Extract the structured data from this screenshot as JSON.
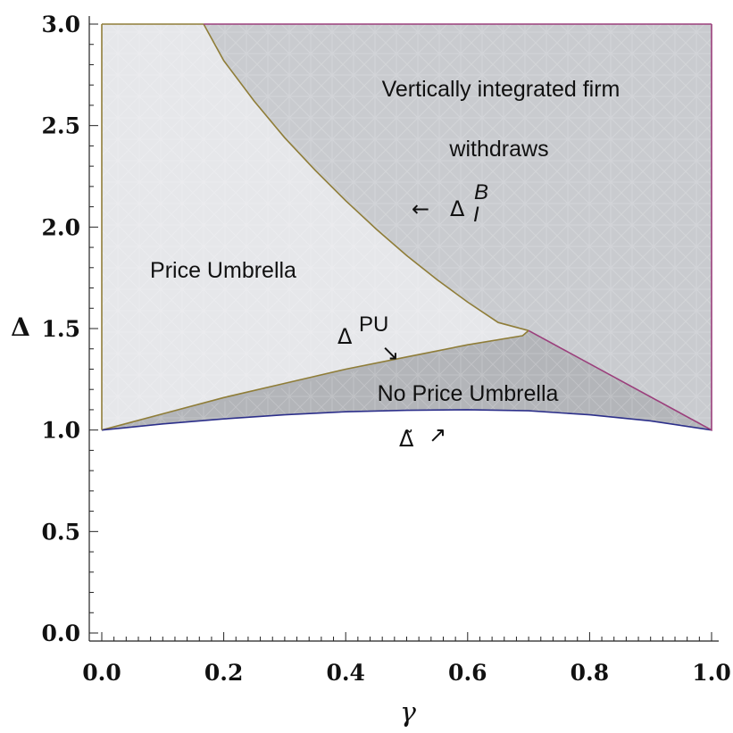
{
  "chart_data": {
    "type": "area",
    "xlabel": "γ",
    "ylabel": "Δ",
    "xlim": [
      0.0,
      1.0
    ],
    "ylim": [
      0.0,
      3.0
    ],
    "x_ticks": [
      "0.0",
      "0.2",
      "0.4",
      "0.6",
      "0.8",
      "1.0"
    ],
    "y_ticks": [
      "0.0",
      "0.5",
      "1.0",
      "1.5",
      "2.0",
      "2.5",
      "3.0"
    ],
    "grid": false,
    "regions": [
      {
        "label": "Price Umbrella",
        "color": "#e6e7ea"
      },
      {
        "label_line1": "Vertically integrated firm",
        "label_line2": "withdraws",
        "color": "#c9cbcf"
      },
      {
        "label": "No Price Umbrella",
        "color": "#b3b5b9"
      }
    ],
    "curves": [
      {
        "name": "Δ_I^B",
        "label_symbol": "Δ",
        "label_sub": "I",
        "label_sup": "B",
        "arrow": "←",
        "color": "#8f7d38",
        "x": [
          0.167,
          0.2,
          0.25,
          0.3,
          0.35,
          0.4,
          0.45,
          0.5,
          0.55,
          0.6,
          0.65,
          0.7
        ],
        "y": [
          3.0,
          2.82,
          2.62,
          2.44,
          2.28,
          2.13,
          1.99,
          1.86,
          1.74,
          1.63,
          1.53,
          1.49
        ]
      },
      {
        "name": "Δ^PU",
        "label_symbol": "Δ",
        "label_sup": "PU",
        "arrow": "↘",
        "color": "#8f7d38",
        "x": [
          0.0,
          0.1,
          0.2,
          0.3,
          0.4,
          0.5,
          0.6,
          0.69,
          0.7
        ],
        "y": [
          1.0,
          1.08,
          1.16,
          1.23,
          1.3,
          1.36,
          1.42,
          1.465,
          1.49
        ]
      },
      {
        "name": "Δ̃",
        "label_symbol": "Δ̃",
        "arrow": "↗",
        "color": "#2c2f8a",
        "x": [
          0.0,
          0.1,
          0.2,
          0.3,
          0.4,
          0.5,
          0.6,
          0.7,
          0.8,
          0.9,
          1.0
        ],
        "y": [
          1.0,
          1.03,
          1.055,
          1.075,
          1.09,
          1.097,
          1.1,
          1.095,
          1.075,
          1.045,
          1.0
        ]
      },
      {
        "name": "upper boundary",
        "color": "#9b3f7c",
        "x": [
          0.7,
          1.0,
          1.0
        ],
        "y": [
          1.49,
          1.0,
          3.0
        ]
      }
    ]
  }
}
